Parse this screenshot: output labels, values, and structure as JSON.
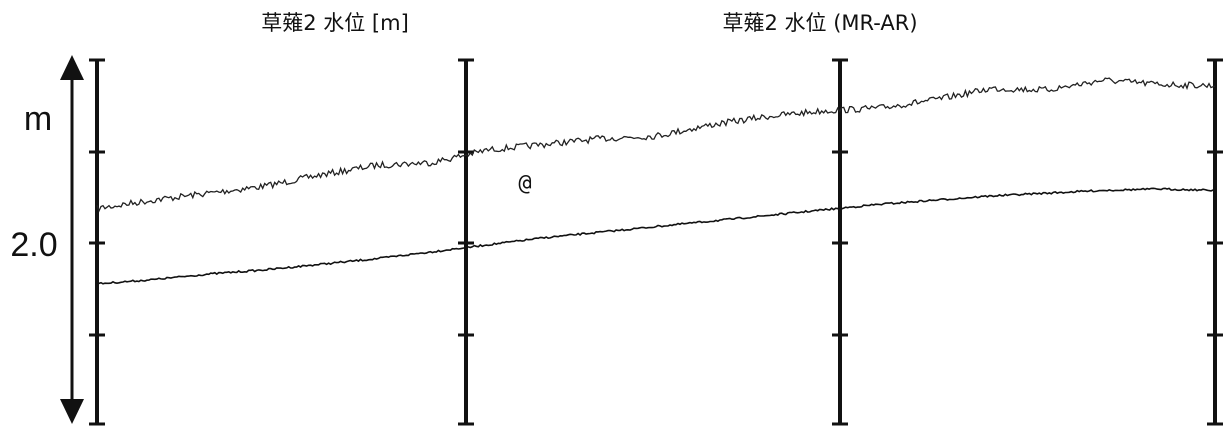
{
  "panel_titles": [
    "草薙2 水位 [m]",
    "草薙2 水位 (MR-AR)"
  ],
  "y_axis": {
    "unit": "m",
    "tick_label": "2.0"
  },
  "annotation": "@",
  "chart_data": {
    "type": "line",
    "title": "",
    "ylabel": "m",
    "y_tick_labels": [
      "2.0"
    ],
    "grid": false,
    "series": [
      {
        "name": "",
        "x": [
          0.0,
          0.05,
          0.1,
          0.15,
          0.2,
          0.25,
          0.3,
          0.35,
          0.4,
          0.45,
          0.5,
          0.55,
          0.6,
          0.65,
          0.7,
          0.75,
          0.8,
          0.85,
          0.9,
          0.95,
          1.0
        ],
        "y": [
          1.55,
          1.49,
          1.44,
          1.39,
          1.31,
          1.24,
          1.22,
          1.13,
          1.09,
          1.05,
          1.03,
          0.95,
          0.89,
          0.85,
          0.83,
          0.77,
          0.69,
          0.7,
          0.63,
          0.66,
          0.67
        ]
      },
      {
        "name": "",
        "x": [
          0.0,
          0.05,
          0.1,
          0.15,
          0.2,
          0.25,
          0.3,
          0.35,
          0.4,
          0.45,
          0.5,
          0.55,
          0.6,
          0.65,
          0.7,
          0.75,
          0.8,
          0.85,
          0.9,
          0.95,
          1.0
        ],
        "y": [
          2.09,
          2.06,
          2.02,
          1.99,
          1.95,
          1.91,
          1.86,
          1.81,
          1.76,
          1.72,
          1.68,
          1.64,
          1.6,
          1.56,
          1.52,
          1.49,
          1.46,
          1.44,
          1.42,
          1.41,
          1.42
        ]
      }
    ]
  }
}
